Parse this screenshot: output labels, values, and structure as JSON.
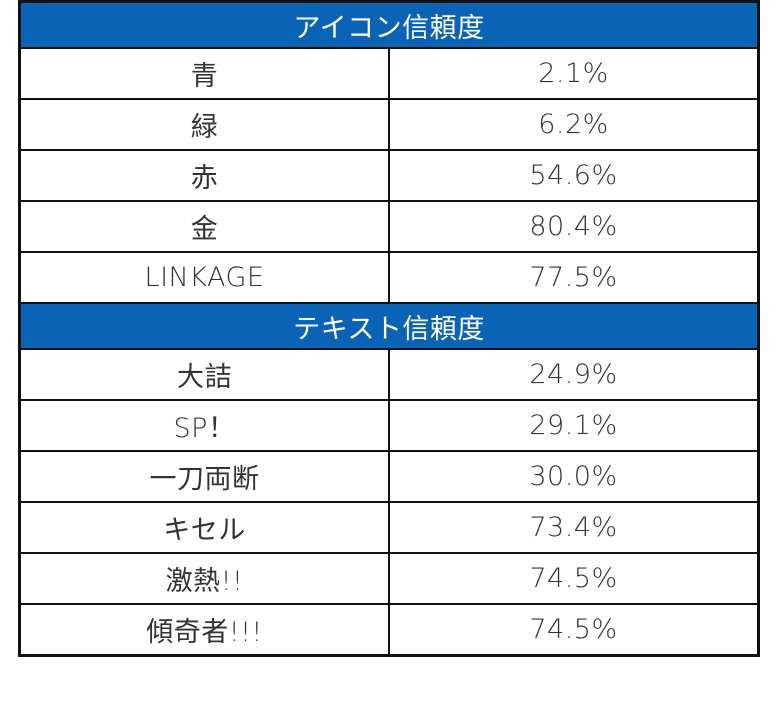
{
  "sections": [
    {
      "header": "アイコン信頼度",
      "rows": [
        {
          "label": "青",
          "value": "2.1%"
        },
        {
          "label": "緑",
          "value": "6.2%"
        },
        {
          "label": "赤",
          "value": "54.6%"
        },
        {
          "label": "金",
          "value": "80.4%"
        },
        {
          "label": "LINKAGE",
          "value": "77.5%"
        }
      ]
    },
    {
      "header": "テキスト信頼度",
      "rows": [
        {
          "label": "大詰",
          "value": "24.9%"
        },
        {
          "label": "SP！",
          "value": "29.1%"
        },
        {
          "label": "一刀両断",
          "value": "30.0%"
        },
        {
          "label": "キセル",
          "value": "73.4%"
        },
        {
          "label": "激熱!!",
          "value": "74.5%"
        },
        {
          "label": "傾奇者!!!",
          "value": "74.5%"
        }
      ]
    }
  ],
  "colors": {
    "header_bg": "#0b63b5",
    "header_text": "#ffffff",
    "border": "#111111",
    "cell_text": "#333333"
  }
}
